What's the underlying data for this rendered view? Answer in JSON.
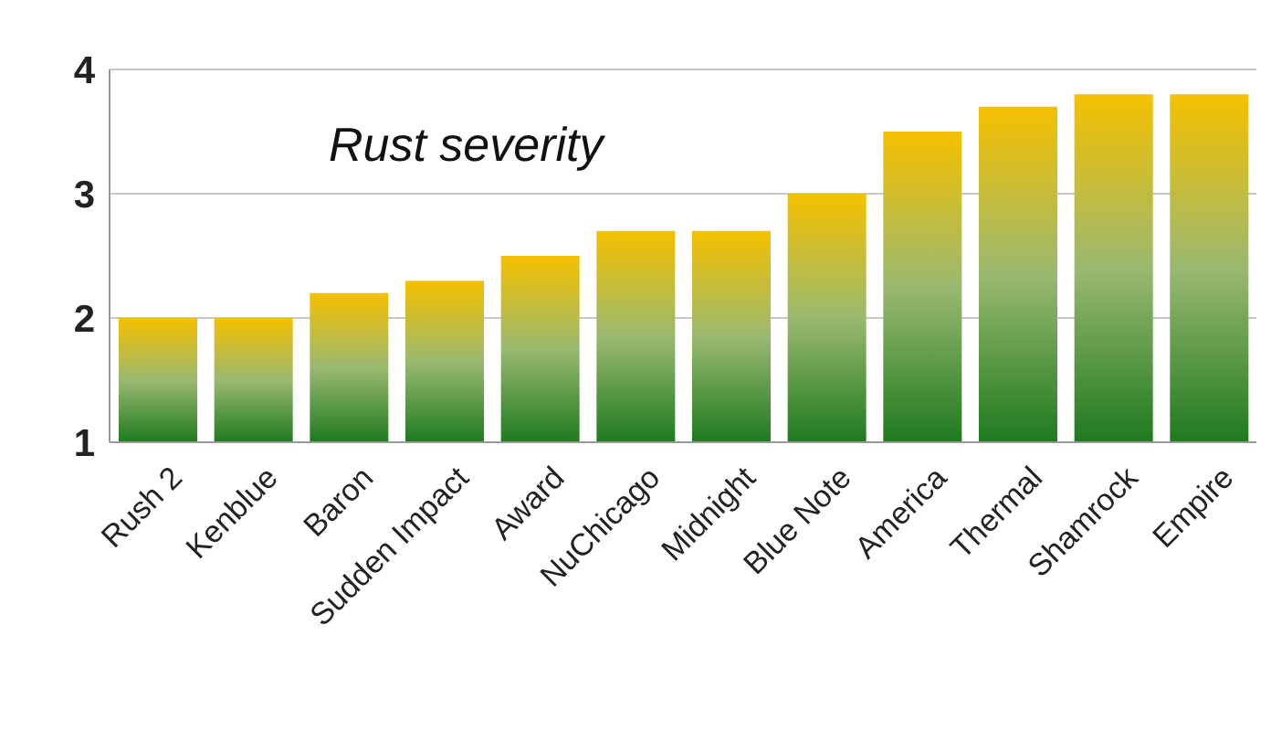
{
  "chart_data": {
    "type": "bar",
    "title": "Rust severity",
    "categories": [
      "Rush 2",
      "Kenblue",
      "Baron",
      "Sudden Impact",
      "Award",
      "NuChicago",
      "Midnight",
      "Blue Note",
      "America",
      "Thermal",
      "Shamrock",
      "Empire"
    ],
    "values": [
      2.0,
      2.0,
      2.2,
      2.3,
      2.5,
      2.7,
      2.7,
      3.0,
      3.5,
      3.7,
      3.8,
      3.8
    ],
    "color": "#f5c000",
    "ylim": [
      1,
      4
    ],
    "yticks": [
      1,
      2,
      3,
      4
    ],
    "grid": "y"
  }
}
